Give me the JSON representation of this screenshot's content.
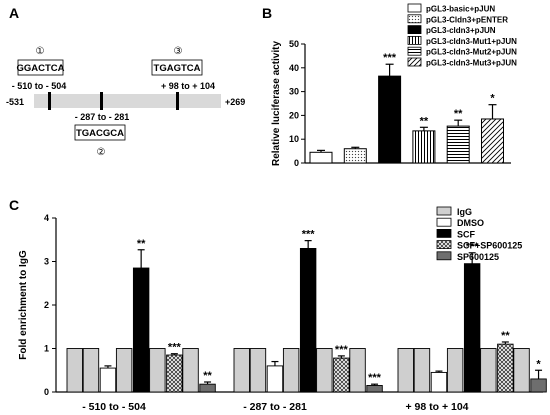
{
  "panels": {
    "a": "A",
    "b": "B",
    "c": "C"
  },
  "panel_a": {
    "promoter_start": "-531",
    "promoter_end": "+269",
    "sites": [
      {
        "marker": "①",
        "sequence": "GGACTCA",
        "range": "- 510 to - 504"
      },
      {
        "marker": "②",
        "sequence": "TGACGCA",
        "range": "- 287 to - 281"
      },
      {
        "marker": "③",
        "sequence": "TGAGTCA",
        "range": "+ 98 to + 104"
      }
    ]
  },
  "chart_data": [
    {
      "type": "bar",
      "panel": "B",
      "ylabel": "Relative luciferase activity",
      "ylim": [
        0,
        50
      ],
      "yticks": [
        "0",
        "10",
        "20",
        "30",
        "40",
        "50"
      ],
      "grid": false,
      "legend_position": "top-right",
      "series": [
        {
          "name": "pGL3-basic+pJUN",
          "value": 4.5,
          "error": 0.8,
          "sig": "",
          "pattern": "white"
        },
        {
          "name": "pGL3-Cldn3+pENTER",
          "value": 6,
          "error": 0.6,
          "sig": "",
          "pattern": "dots"
        },
        {
          "name": "pGL3-cldn3+pJUN",
          "value": 36.5,
          "error": 5,
          "sig": "***",
          "pattern": "black"
        },
        {
          "name": "pGL3-cldn3-Mut1+pJUN",
          "value": 13.5,
          "error": 1.5,
          "sig": "**",
          "pattern": "vertical"
        },
        {
          "name": "pGL3-cldn3-Mut2+pJUN",
          "value": 15.5,
          "error": 2.5,
          "sig": "**",
          "pattern": "horizontal"
        },
        {
          "name": "pGL3-cldn3-Mut3+pJUN",
          "value": 18.5,
          "error": 6,
          "sig": "*",
          "pattern": "diagonal"
        }
      ]
    },
    {
      "type": "bar",
      "panel": "C",
      "ylabel": "Fold enrichment to IgG",
      "ylim": [
        0,
        4
      ],
      "yticks": [
        "0",
        "1",
        "2",
        "3",
        "4"
      ],
      "grid": false,
      "legend_position": "top-right",
      "categories": [
        "- 510 to - 504",
        "- 287 to - 281",
        "+ 98 to + 104"
      ],
      "series": [
        {
          "name": "IgG",
          "pattern": "lightgray",
          "values": [
            1,
            1,
            1
          ],
          "errors": [
            0,
            0,
            0
          ],
          "sig": [
            "",
            "",
            ""
          ]
        },
        {
          "name": "DMSO",
          "pattern": "white",
          "values": [
            0.55,
            0.6,
            0.45
          ],
          "errors": [
            0.05,
            0.1,
            0.03
          ],
          "sig": [
            "",
            "",
            ""
          ]
        },
        {
          "name": "SCF",
          "pattern": "black",
          "values": [
            2.85,
            3.3,
            2.95
          ],
          "errors": [
            0.42,
            0.18,
            0.25
          ],
          "sig": [
            "**",
            "***",
            "***"
          ]
        },
        {
          "name": "SCF+SP600125",
          "pattern": "checker",
          "values": [
            0.85,
            0.78,
            1.1
          ],
          "errors": [
            0.03,
            0.05,
            0.05
          ],
          "sig": [
            "***",
            "***",
            "**"
          ]
        },
        {
          "name": "SP600125",
          "pattern": "darkgray",
          "values": [
            0.18,
            0.15,
            0.3
          ],
          "errors": [
            0.05,
            0.03,
            0.2
          ],
          "sig": [
            "**",
            "***",
            "*"
          ]
        }
      ]
    }
  ]
}
